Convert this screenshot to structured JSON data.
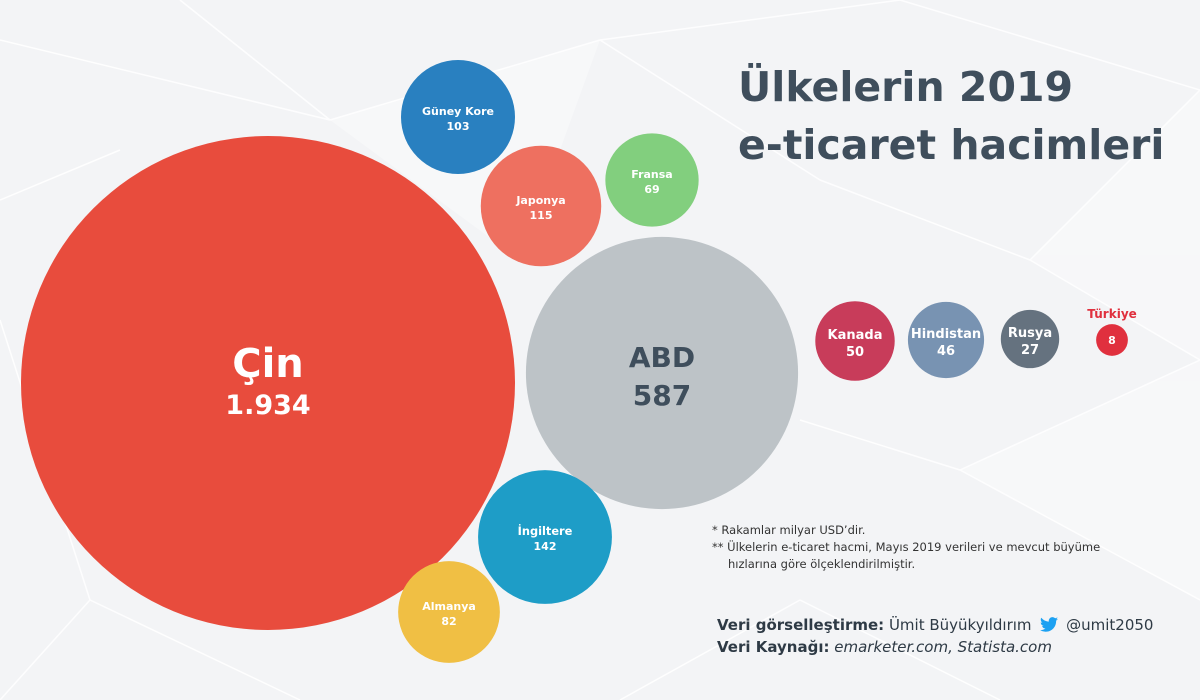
{
  "title": {
    "line1": "Ülkelerin 2019",
    "line2": "e-ticaret hacimleri"
  },
  "notes": {
    "note1": "*  Rakamlar milyar USD’dir.",
    "note2": "** Ülkelerin e-ticaret hacmi, Mayıs 2019 verileri ve mevcut büyüme",
    "note3": "hızlarına göre ölçeklendirilmiştir."
  },
  "credits": {
    "viz_label": "Veri görselleştirme:",
    "viz_name": "Ümit Büyükyıldırım",
    "twitter_icon": "twitter-bird-icon",
    "handle": "@umit2050",
    "source_label": "Veri Kaynağı:",
    "source_value": "emarketer.com, Statista.com"
  },
  "chart_data": {
    "type": "bubble",
    "unit": "milyar USD",
    "points": [
      {
        "name": "Çin",
        "value_label": "1.934",
        "value": 1934,
        "color": "#e84c3d"
      },
      {
        "name": "ABD",
        "value_label": "587",
        "value": 587,
        "color": "#bdc3c7"
      },
      {
        "name": "İngiltere",
        "value_label": "142",
        "value": 142,
        "color": "#1e9dc7"
      },
      {
        "name": "Japonya",
        "value_label": "115",
        "value": 115,
        "color": "#ee7060"
      },
      {
        "name": "Güney Kore",
        "value_label": "103",
        "value": 103,
        "color": "#2980c0"
      },
      {
        "name": "Almanya",
        "value_label": "82",
        "value": 82,
        "color": "#f0bf44"
      },
      {
        "name": "Fransa",
        "value_label": "69",
        "value": 69,
        "color": "#82cf7e"
      },
      {
        "name": "Kanada",
        "value_label": "50",
        "value": 50,
        "color": "#c83c5a"
      },
      {
        "name": "Hindistan",
        "value_label": "46",
        "value": 46,
        "color": "#7893b2"
      },
      {
        "name": "Rusya",
        "value_label": "27",
        "value": 27,
        "color": "#65727f"
      },
      {
        "name": "Türkiye",
        "value_label": "8",
        "value": 8,
        "color": "#e0303e"
      }
    ]
  }
}
